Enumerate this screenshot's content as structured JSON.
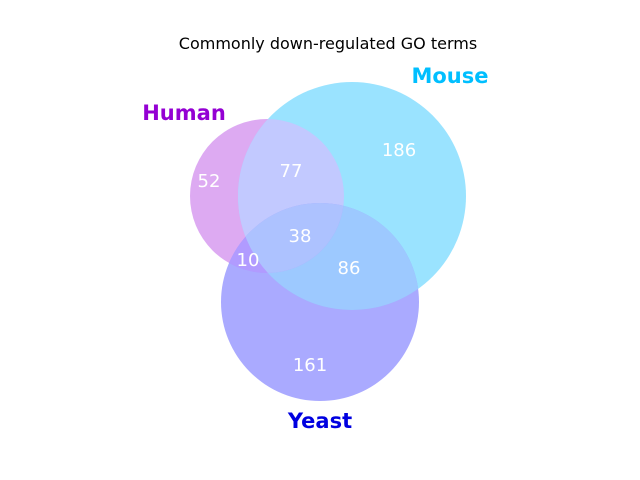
{
  "title": "Commonly down-regulated GO terms",
  "sets": {
    "human": {
      "label": "Human",
      "label_color": "#9400d3",
      "fill": "#d79bf0"
    },
    "mouse": {
      "label": "Mouse",
      "label_color": "#00bfff",
      "fill": "#8fe0ff"
    },
    "yeast": {
      "label": "Yeast",
      "label_color": "#0000e0",
      "fill": "#9b9bff"
    }
  },
  "regions": {
    "human_only": "52",
    "mouse_only": "186",
    "yeast_only": "161",
    "human_mouse": "77",
    "human_yeast": "10",
    "mouse_yeast": "86",
    "all_three": "38"
  }
}
